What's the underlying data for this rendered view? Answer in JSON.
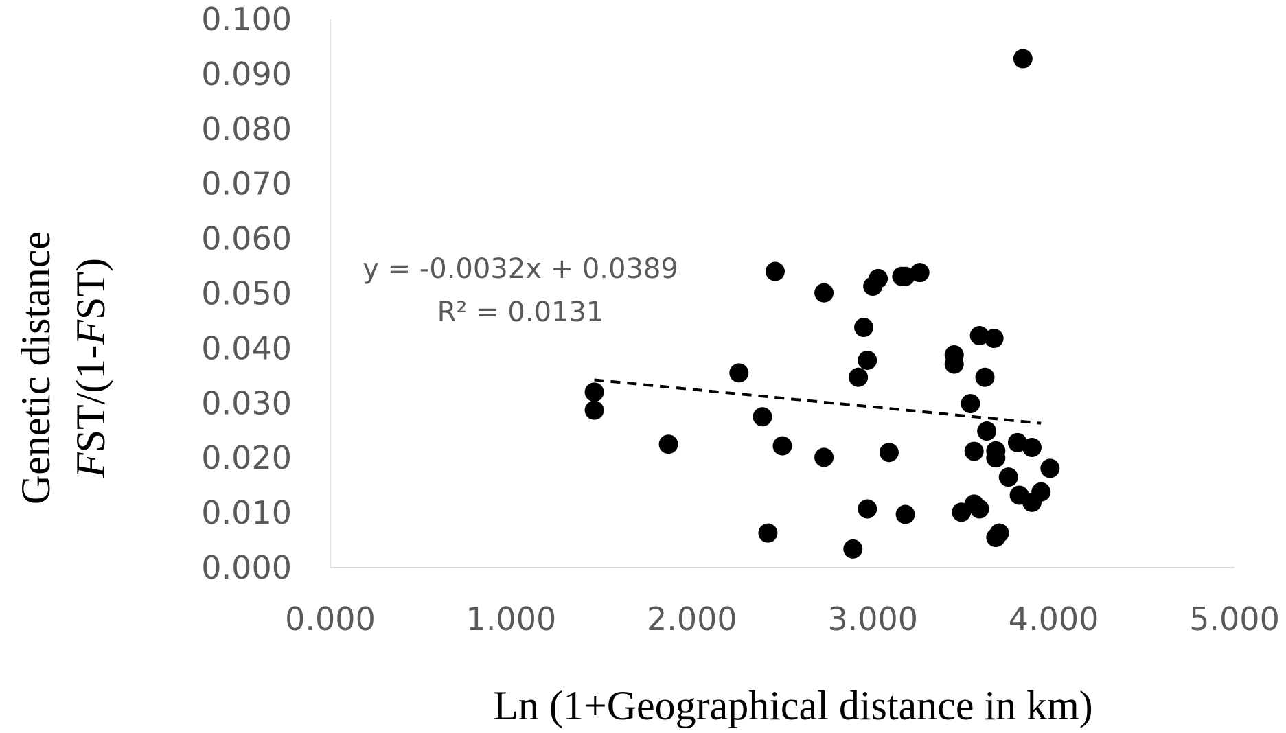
{
  "chart_data": {
    "type": "scatter",
    "title": "",
    "xlabel": "Ln (1+Geographical distance in km)",
    "ylabel_line1": "Genetic distance",
    "ylabel_line2_parts": [
      {
        "text": "F",
        "italic": true
      },
      {
        "text": "ST/(1-",
        "italic": false
      },
      {
        "text": "F",
        "italic": true
      },
      {
        "text": "ST)",
        "italic": false
      }
    ],
    "xlim": [
      0,
      5
    ],
    "ylim": [
      0,
      0.1
    ],
    "x_ticks": [
      "0.000",
      "1.000",
      "2.000",
      "3.000",
      "4.000",
      "5.000"
    ],
    "y_ticks": [
      "0.000",
      "0.010",
      "0.020",
      "0.030",
      "0.040",
      "0.050",
      "0.060",
      "0.070",
      "0.080",
      "0.090",
      "0.100"
    ],
    "grid": false,
    "legend": "none",
    "marker_color": "#000000",
    "trendline": {
      "style": "dashed",
      "slope": -0.0032,
      "intercept": 0.0389,
      "x_range": [
        1.46,
        3.93
      ],
      "equation": "y = -0.0032x + 0.0389",
      "r_squared": "R² = 0.0131"
    },
    "points": [
      [
        1.46,
        0.032
      ],
      [
        1.46,
        0.0287
      ],
      [
        1.87,
        0.0225
      ],
      [
        2.26,
        0.0355
      ],
      [
        2.39,
        0.0275
      ],
      [
        2.42,
        0.0063
      ],
      [
        2.46,
        0.054
      ],
      [
        2.5,
        0.0222
      ],
      [
        2.73,
        0.0501
      ],
      [
        2.73,
        0.0201
      ],
      [
        2.89,
        0.0034
      ],
      [
        2.92,
        0.0347
      ],
      [
        2.95,
        0.0438
      ],
      [
        2.97,
        0.0378
      ],
      [
        2.97,
        0.0107
      ],
      [
        3.0,
        0.0513
      ],
      [
        3.03,
        0.0527
      ],
      [
        3.09,
        0.021
      ],
      [
        3.16,
        0.0531
      ],
      [
        3.18,
        0.0531
      ],
      [
        3.18,
        0.0097
      ],
      [
        3.26,
        0.0538
      ],
      [
        3.45,
        0.0388
      ],
      [
        3.45,
        0.0371
      ],
      [
        3.49,
        0.0101
      ],
      [
        3.54,
        0.0299
      ],
      [
        3.56,
        0.0212
      ],
      [
        3.56,
        0.0116
      ],
      [
        3.59,
        0.0107
      ],
      [
        3.59,
        0.0423
      ],
      [
        3.62,
        0.0347
      ],
      [
        3.63,
        0.0249
      ],
      [
        3.67,
        0.0418
      ],
      [
        3.68,
        0.0213
      ],
      [
        3.68,
        0.02
      ],
      [
        3.68,
        0.0055
      ],
      [
        3.7,
        0.0063
      ],
      [
        3.75,
        0.0165
      ],
      [
        3.8,
        0.0228
      ],
      [
        3.81,
        0.0132
      ],
      [
        3.83,
        0.0928
      ],
      [
        3.88,
        0.0219
      ],
      [
        3.88,
        0.0119
      ],
      [
        3.93,
        0.0138
      ],
      [
        3.98,
        0.0181
      ]
    ]
  }
}
